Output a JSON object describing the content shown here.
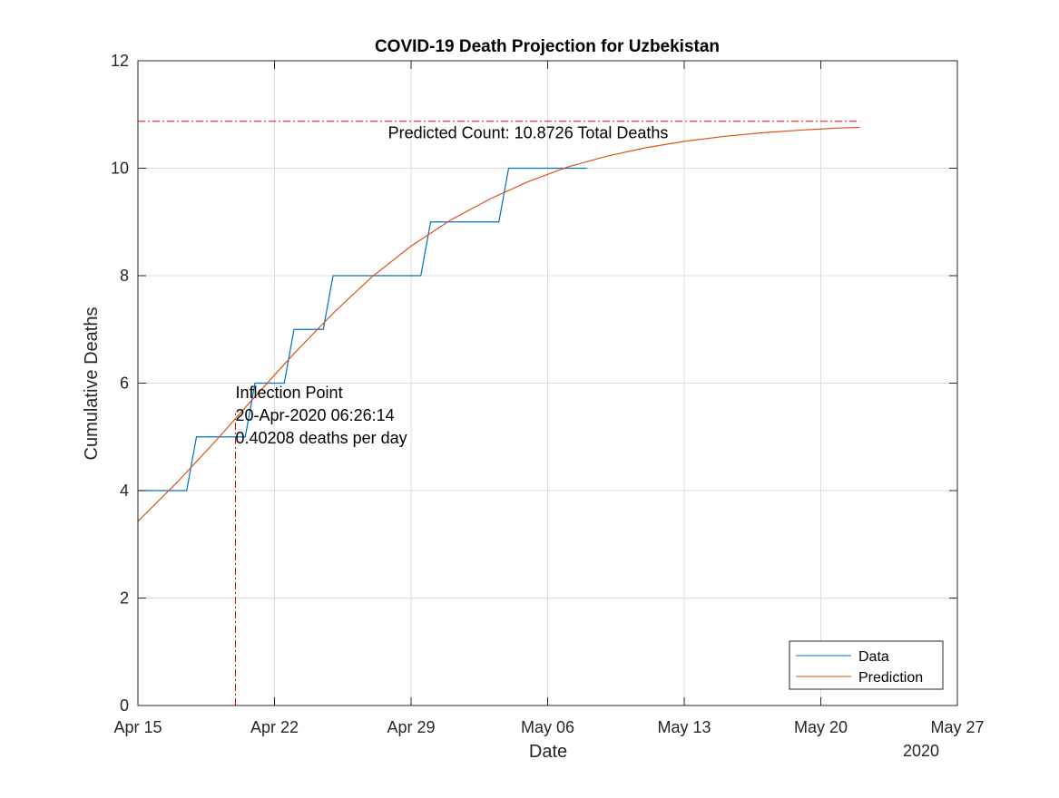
{
  "chart_data": {
    "type": "line",
    "title": "COVID-19 Death Projection for Uzbekistan",
    "xlabel": "Date",
    "ylabel": "Cumulative Deaths",
    "year_label": "2020",
    "x_axis": {
      "range": [
        "2020-04-15",
        "2020-05-27"
      ],
      "ticks": [
        {
          "date": "2020-04-15",
          "label": "Apr 15"
        },
        {
          "date": "2020-04-22",
          "label": "Apr 22"
        },
        {
          "date": "2020-04-29",
          "label": "Apr 29"
        },
        {
          "date": "2020-05-06",
          "label": "May 06"
        },
        {
          "date": "2020-05-13",
          "label": "May 13"
        },
        {
          "date": "2020-05-20",
          "label": "May 20"
        },
        {
          "date": "2020-05-27",
          "label": "May 27"
        }
      ]
    },
    "y_axis": {
      "ylim": [
        0,
        12
      ],
      "ticks": [
        0,
        2,
        4,
        6,
        8,
        10,
        12
      ]
    },
    "grid": true,
    "legend_position": "bottom-right",
    "series": [
      {
        "name": "Data",
        "color": "#0072BD",
        "style": "stairs",
        "points": [
          {
            "date": "2020-04-15",
            "value": 4
          },
          {
            "date": "2020-04-16",
            "value": 4
          },
          {
            "date": "2020-04-17",
            "value": 4
          },
          {
            "date": "2020-04-18",
            "value": 5
          },
          {
            "date": "2020-04-19",
            "value": 5
          },
          {
            "date": "2020-04-20",
            "value": 5
          },
          {
            "date": "2020-04-21",
            "value": 6
          },
          {
            "date": "2020-04-22",
            "value": 6
          },
          {
            "date": "2020-04-23",
            "value": 7
          },
          {
            "date": "2020-04-24",
            "value": 7
          },
          {
            "date": "2020-04-25",
            "value": 8
          },
          {
            "date": "2020-04-26",
            "value": 8
          },
          {
            "date": "2020-04-27",
            "value": 8
          },
          {
            "date": "2020-04-28",
            "value": 8
          },
          {
            "date": "2020-04-29",
            "value": 8
          },
          {
            "date": "2020-04-30",
            "value": 9
          },
          {
            "date": "2020-05-01",
            "value": 9
          },
          {
            "date": "2020-05-02",
            "value": 9
          },
          {
            "date": "2020-05-03",
            "value": 9
          },
          {
            "date": "2020-05-04",
            "value": 10
          },
          {
            "date": "2020-05-05",
            "value": 10
          },
          {
            "date": "2020-05-06",
            "value": 10
          },
          {
            "date": "2020-05-07",
            "value": 10
          },
          {
            "date": "2020-05-08",
            "value": 10
          }
        ]
      },
      {
        "name": "Prediction",
        "color": "#D95319",
        "style": "line",
        "points": [
          {
            "date": "2020-04-15",
            "value": 3.43
          },
          {
            "date": "2020-04-17",
            "value": 4.15
          },
          {
            "date": "2020-04-19",
            "value": 4.93
          },
          {
            "date": "2020-04-21",
            "value": 5.75
          },
          {
            "date": "2020-04-23",
            "value": 6.55
          },
          {
            "date": "2020-04-25",
            "value": 7.3
          },
          {
            "date": "2020-04-27",
            "value": 7.98
          },
          {
            "date": "2020-04-29",
            "value": 8.55
          },
          {
            "date": "2020-05-01",
            "value": 9.03
          },
          {
            "date": "2020-05-03",
            "value": 9.42
          },
          {
            "date": "2020-05-05",
            "value": 9.75
          },
          {
            "date": "2020-05-07",
            "value": 10.02
          },
          {
            "date": "2020-05-09",
            "value": 10.22
          },
          {
            "date": "2020-05-11",
            "value": 10.38
          },
          {
            "date": "2020-05-13",
            "value": 10.5
          },
          {
            "date": "2020-05-15",
            "value": 10.59
          },
          {
            "date": "2020-05-17",
            "value": 10.66
          },
          {
            "date": "2020-05-19",
            "value": 10.71
          },
          {
            "date": "2020-05-21",
            "value": 10.75
          },
          {
            "date": "2020-05-22",
            "value": 10.76
          }
        ]
      }
    ],
    "reference_lines": [
      {
        "kind": "horizontal",
        "value": 10.8726,
        "x_start": "2020-04-15",
        "x_end": "2020-05-22",
        "color": "#FF0000"
      },
      {
        "kind": "vertical",
        "date": "2020-04-20",
        "y_start": 0,
        "y_end": 5.44,
        "color": "#FF0000"
      }
    ],
    "annotations": [
      {
        "id": "predicted",
        "lines": [
          "Predicted Count: 10.8726 Total Deaths"
        ],
        "date": "2020-05-05",
        "value": 10.56,
        "anchor": "middle"
      },
      {
        "id": "inflection",
        "lines": [
          "Inflection Point",
          "20-Apr-2020 06:26:14",
          "0.40208 deaths per day"
        ],
        "date": "2020-04-20",
        "value": 5.72,
        "anchor": "start"
      }
    ]
  }
}
